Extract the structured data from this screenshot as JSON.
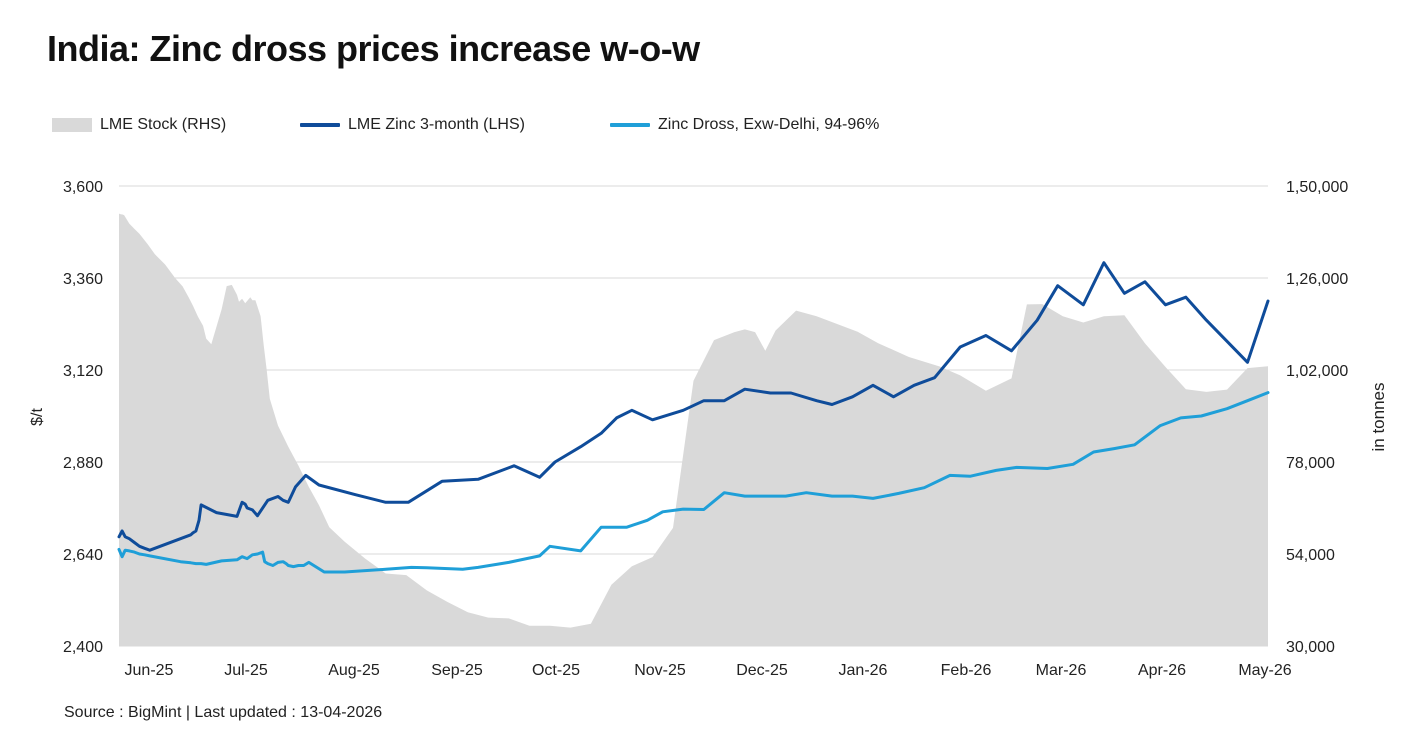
{
  "title": "India: Zinc dross prices increase w-o-w",
  "footer": "Source : BigMint | Last updated : 13-04-2026",
  "colors": {
    "stock": "#d9d9d9",
    "lme": "#0f4c9a",
    "dross": "#1f9fd8",
    "grid": "#d9d9d9"
  },
  "chart_data": {
    "type": "line",
    "x_ticks": [
      "Jun-25",
      "Jul-25",
      "Aug-25",
      "Sep-25",
      "Oct-25",
      "Nov-25",
      "Dec-25",
      "Jan-26",
      "Feb-26",
      "Mar-26",
      "Apr-26",
      "May-26"
    ],
    "ylabel": "$/t",
    "ylabel_right": "in tonnes",
    "ylim": [
      2400,
      3600
    ],
    "ylim_right": [
      30000,
      150000
    ],
    "y_ticks": [
      "3,600",
      "3,360",
      "3,120",
      "2,880",
      "2,640",
      "2,400"
    ],
    "y_ticks_right": [
      "1,50,000",
      "1,26,000",
      "1,02,000",
      "78,000",
      "54,000",
      "30,000"
    ],
    "grid": "horizontal",
    "legend_position": "top-left",
    "series": [
      {
        "name": "LME Stock (RHS)",
        "type": "area",
        "axis": "right",
        "x": [
          0.0,
          0.02,
          0.03,
          0.05,
          0.1,
          0.15,
          0.2,
          0.28,
          0.35,
          0.45,
          0.55,
          0.62,
          0.68,
          0.72,
          0.77,
          0.82,
          0.85,
          0.9,
          1.0,
          1.05,
          1.1,
          1.15,
          1.17,
          1.2,
          1.23,
          1.28,
          1.3,
          1.33,
          1.38,
          1.41,
          1.44,
          1.47,
          1.55,
          1.65,
          1.75,
          1.85,
          1.95,
          2.05,
          2.2,
          2.4,
          2.6,
          2.8,
          3.0,
          3.2,
          3.4,
          3.6,
          3.8,
          4.0,
          4.2,
          4.4,
          4.6,
          4.8,
          5.0,
          5.2,
          5.4,
          5.6,
          5.8,
          6.0,
          6.1,
          6.2,
          6.3,
          6.4,
          6.6,
          6.8,
          7.0,
          7.2,
          7.4,
          7.7,
          8.0,
          8.2,
          8.45,
          8.7,
          8.85,
          9.0,
          9.2,
          9.4,
          9.6,
          9.8,
          10.0,
          10.2,
          10.4,
          10.6,
          10.8,
          11.0,
          11.2
        ],
        "values": [
          142800,
          142600,
          142600,
          142400,
          140200,
          138800,
          137500,
          134800,
          132200,
          129500,
          125900,
          123800,
          120900,
          118800,
          115900,
          113500,
          110200,
          108700,
          117800,
          123900,
          124200,
          121600,
          119800,
          120600,
          119400,
          121000,
          120200,
          120200,
          116000,
          108500,
          102000,
          94500,
          87500,
          82000,
          77000,
          71500,
          66700,
          61000,
          57200,
          52800,
          48900,
          48500,
          44500,
          41500,
          38800,
          37400,
          37200,
          35300,
          35300,
          34800,
          35800,
          46000,
          50800,
          53200,
          60800,
          99200,
          109800,
          111900,
          112600,
          111900,
          107000,
          112300,
          117500,
          116000,
          114000,
          112000,
          109000,
          105400,
          102900,
          100600,
          96600,
          99800,
          119100,
          119200,
          116000,
          114400,
          116000,
          116300,
          109000,
          102800,
          97000,
          96300,
          96900,
          102500,
          103000
        ]
      },
      {
        "name": "LME  Zinc  3-month (LHS)",
        "type": "line",
        "axis": "left",
        "x": [
          0.0,
          0.03,
          0.06,
          0.1,
          0.15,
          0.2,
          0.25,
          0.3,
          0.7,
          0.72,
          0.75,
          0.78,
          0.8,
          0.95,
          1.15,
          1.2,
          1.23,
          1.25,
          1.3,
          1.35,
          1.45,
          1.55,
          1.6,
          1.65,
          1.72,
          1.82,
          1.95,
          2.3,
          2.6,
          2.82,
          3.15,
          3.5,
          3.85,
          4.1,
          4.25,
          4.5,
          4.7,
          4.85,
          5.0,
          5.2,
          5.5,
          5.7,
          5.9,
          6.1,
          6.35,
          6.55,
          6.8,
          6.95,
          7.15,
          7.35,
          7.55,
          7.75,
          7.95,
          8.2,
          8.45,
          8.7,
          8.95,
          9.15,
          9.4,
          9.6,
          9.8,
          10.0,
          10.2,
          10.4,
          10.6,
          11.0,
          11.2
        ],
        "values": [
          2685,
          2700,
          2685,
          2680,
          2670,
          2660,
          2655,
          2650,
          2690,
          2695,
          2700,
          2728,
          2768,
          2748,
          2738,
          2775,
          2770,
          2760,
          2755,
          2740,
          2780,
          2790,
          2780,
          2775,
          2815,
          2845,
          2820,
          2795,
          2775,
          2775,
          2830,
          2835,
          2870,
          2840,
          2880,
          2920,
          2955,
          2995,
          3015,
          2990,
          3015,
          3040,
          3040,
          3070,
          3060,
          3060,
          3040,
          3030,
          3050,
          3080,
          3050,
          3080,
          3100,
          3180,
          3210,
          3170,
          3250,
          3340,
          3290,
          3400,
          3320,
          3350,
          3290,
          3310,
          3250,
          3140,
          3300
        ]
      },
      {
        "name": "Zinc Dross, Exw-Delhi, 94-96%",
        "type": "line",
        "axis": "left",
        "x": [
          0.0,
          0.03,
          0.06,
          0.1,
          0.15,
          0.2,
          0.25,
          0.3,
          0.6,
          0.7,
          0.75,
          0.8,
          0.85,
          1.0,
          1.15,
          1.2,
          1.25,
          1.3,
          1.35,
          1.4,
          1.42,
          1.45,
          1.5,
          1.55,
          1.6,
          1.63,
          1.65,
          1.7,
          1.75,
          1.8,
          1.85,
          2.0,
          2.2,
          2.6,
          2.85,
          3.0,
          3.35,
          3.5,
          3.8,
          4.1,
          4.2,
          4.5,
          4.7,
          4.95,
          5.15,
          5.3,
          5.5,
          5.7,
          5.9,
          6.1,
          6.3,
          6.5,
          6.7,
          6.95,
          7.15,
          7.35,
          7.6,
          7.85,
          8.1,
          8.3,
          8.55,
          8.75,
          9.05,
          9.3,
          9.5,
          9.7,
          9.9,
          10.15,
          10.35,
          10.55,
          10.8,
          11.0,
          11.2
        ],
        "values": [
          2652,
          2633,
          2650,
          2648,
          2645,
          2640,
          2638,
          2635,
          2620,
          2617,
          2615,
          2615,
          2613,
          2622,
          2625,
          2633,
          2628,
          2638,
          2640,
          2645,
          2620,
          2615,
          2610,
          2618,
          2620,
          2615,
          2610,
          2607,
          2610,
          2610,
          2618,
          2593,
          2593,
          2600,
          2605,
          2604,
          2600,
          2605,
          2618,
          2635,
          2660,
          2648,
          2710,
          2710,
          2728,
          2750,
          2757,
          2756,
          2800,
          2791,
          2791,
          2791,
          2800,
          2791,
          2791,
          2785,
          2798,
          2813,
          2845,
          2843,
          2858,
          2866,
          2863,
          2874,
          2906,
          2915,
          2925,
          2975,
          2995,
          3000,
          3019,
          3040,
          3061
        ]
      }
    ]
  }
}
